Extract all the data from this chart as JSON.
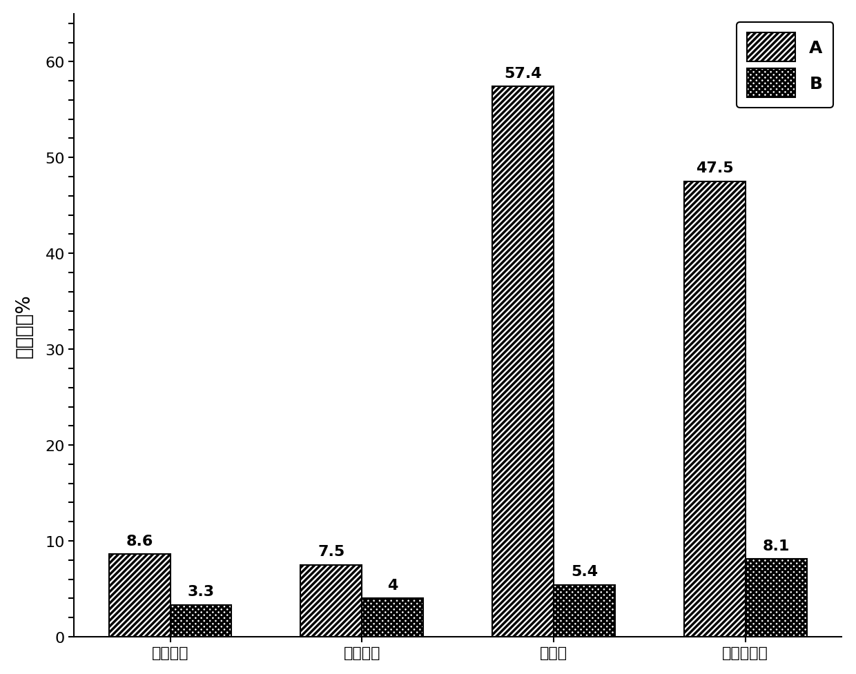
{
  "categories": [
    "屈服强度",
    "抗拉强度",
    "延伸率",
    "断面收缩率"
  ],
  "series_A": [
    8.6,
    7.5,
    57.4,
    47.5
  ],
  "series_B": [
    3.3,
    4.0,
    5.4,
    8.1
  ],
  "series_A_label": "A",
  "series_B_label": "B",
  "ylabel": "各向异性%",
  "ylim": [
    0,
    65
  ],
  "yticks": [
    0,
    10,
    20,
    30,
    40,
    50,
    60
  ],
  "bar_width": 0.32,
  "color_A": "#ffffff",
  "color_B": "#ffffff",
  "hatch_A": "////",
  "hatch_B": "xxxx",
  "edgecolor": "#000000",
  "tick_fontsize": 16,
  "ylabel_fontsize": 20,
  "annotation_fontsize": 16,
  "legend_fontsize": 18,
  "background_color": "#ffffff",
  "figsize": [
    12.4,
    9.78
  ],
  "dpi": 100
}
